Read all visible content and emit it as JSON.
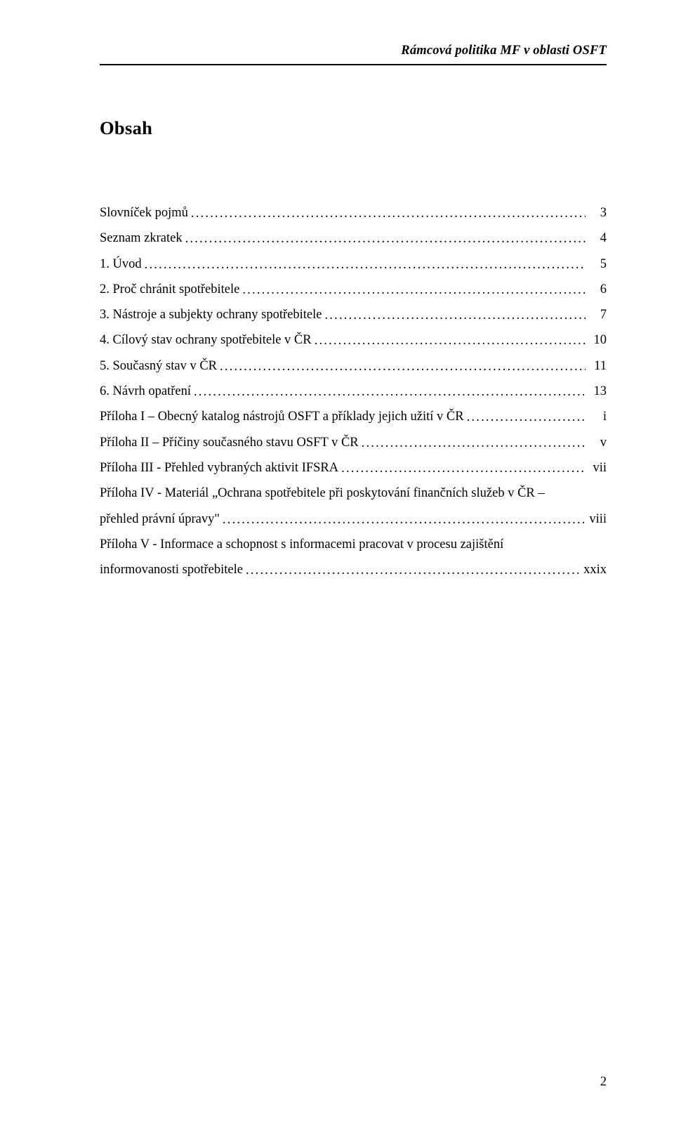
{
  "header": {
    "text": "Rámcová politika MF v oblasti OSFT"
  },
  "title": "Obsah",
  "toc": {
    "items": [
      {
        "label": "Slovníček pojmů",
        "page": "3"
      },
      {
        "label": "Seznam zkratek",
        "page": "4"
      },
      {
        "label": "1. Úvod",
        "page": "5"
      },
      {
        "label": "2. Proč chránit spotřebitele",
        "page": "6"
      },
      {
        "label": "3. Nástroje a subjekty ochrany spotřebitele",
        "page": "7"
      },
      {
        "label": "4. Cílový stav ochrany spotřebitele v ČR",
        "page": "10"
      },
      {
        "label": "5. Současný stav v ČR",
        "page": "11"
      },
      {
        "label": "6. Návrh opatření",
        "page": "13"
      },
      {
        "label": "Příloha I – Obecný katalog nástrojů OSFT a příklady jejich užití v ČR",
        "page": "i"
      },
      {
        "label": "Příloha II – Příčiny současného stavu OSFT v ČR",
        "page": "v"
      },
      {
        "label": "Příloha III - Přehled vybraných aktivit IFSRA",
        "page": "vii"
      }
    ],
    "multi1": {
      "line1": "Příloha IV - Materiál „Ochrana spotřebitele při poskytování finančních služeb v ČR –",
      "line2": "přehled právní úpravy\"",
      "page": "viii"
    },
    "multi2": {
      "line1": "Příloha V - Informace a schopnost s informacemi pracovat v procesu zajištění",
      "line2": "informovanosti spotřebitele",
      "page": "xxix"
    }
  },
  "pageNumber": "2"
}
